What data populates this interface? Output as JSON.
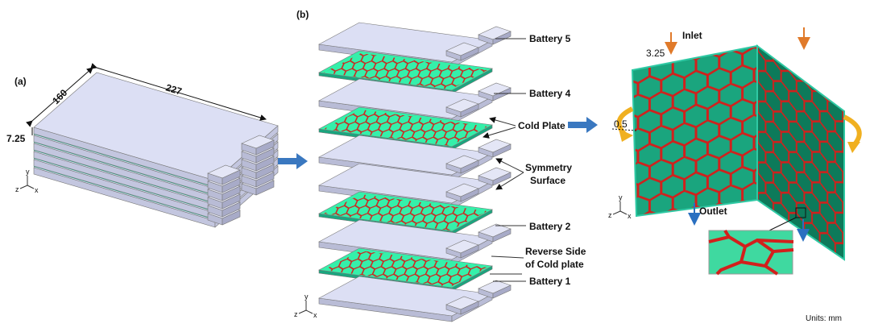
{
  "panel_a": {
    "label": "(a)",
    "dimensions": [
      "160",
      "227",
      "7.25"
    ]
  },
  "panel_b": {
    "label": "(b)",
    "callouts": [
      "Battery 5",
      "Battery 4",
      "Cold Plate",
      "Symmetry",
      "Surface",
      "Battery 2",
      "Reverse Side",
      "of Cold plate",
      "Battery 1"
    ]
  },
  "panel_c": {
    "inlet": "Inlet",
    "outlet": "Outlet",
    "dimensions": [
      "3.25",
      "0.5"
    ]
  },
  "axis_labels": [
    "y",
    "z",
    "x"
  ],
  "units": "Units: mm"
}
